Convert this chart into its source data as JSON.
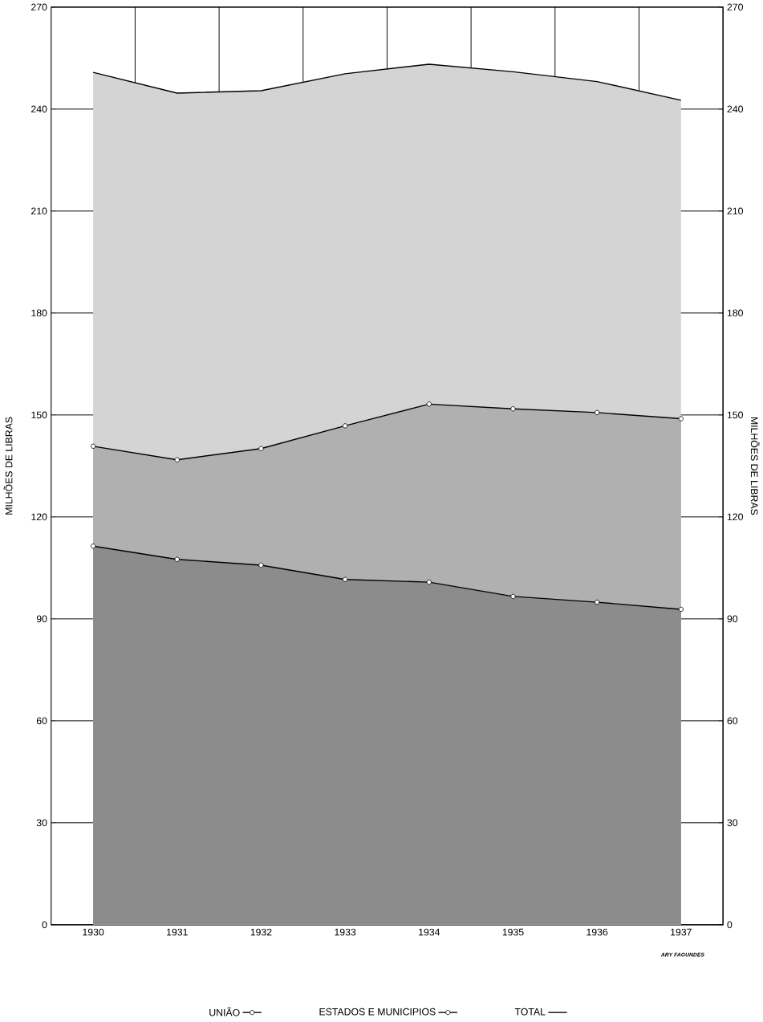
{
  "chart_data": {
    "type": "area",
    "categories": [
      "1930",
      "1931",
      "1932",
      "1933",
      "1934",
      "1935",
      "1936",
      "1937"
    ],
    "series": [
      {
        "name": "TOTAL",
        "color": "#d4d4d4",
        "marker": "none",
        "values": [
          250.8,
          244.7,
          245.4,
          250.4,
          253.2,
          251,
          248.1,
          242.6
        ]
      },
      {
        "name": "ESTADOS E MUNICIPIOS",
        "color": "#b0b0b0",
        "marker": "circle",
        "values": [
          140.8,
          136.8,
          140.1,
          146.8,
          153.2,
          151.8,
          150.7,
          148.9
        ]
      },
      {
        "name": "UNIÃO",
        "color": "#8c8c8c",
        "marker": "circle",
        "values": [
          111.4,
          107.5,
          105.8,
          101.6,
          100.8,
          96.6,
          94.9,
          92.8
        ]
      }
    ],
    "ylabel": "MILHÕES DE LIBRAS",
    "y2label": "MILHÕES DE LIBRAS",
    "ylim": [
      0,
      270
    ],
    "yticks": [
      0,
      30,
      60,
      90,
      120,
      150,
      180,
      210,
      240,
      270
    ],
    "y2lim": [
      0,
      270
    ],
    "y2ticks": [
      0,
      30,
      60,
      90,
      120,
      150,
      180,
      210,
      240,
      270
    ],
    "grid": true,
    "legend": "bottom",
    "annotations": [
      "ARY FAGUNDES"
    ]
  }
}
